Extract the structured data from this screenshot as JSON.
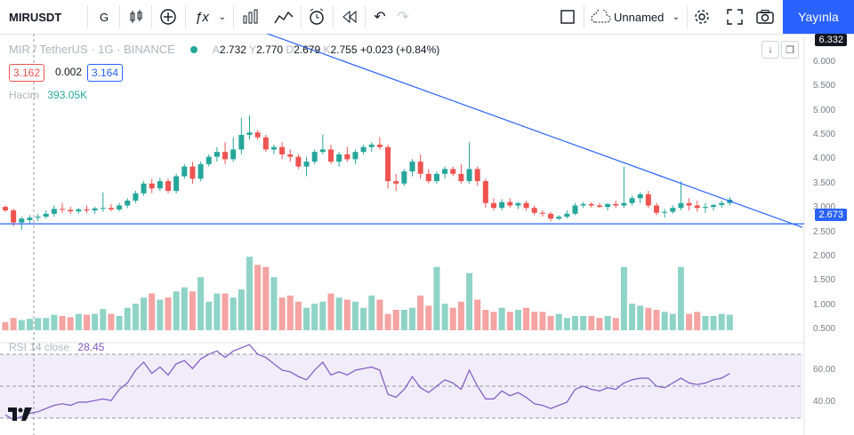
{
  "toolbar": {
    "symbol": "MIRUSDT",
    "interval": "G",
    "layout_name": "Unnamed",
    "publish_label": "Yayınla"
  },
  "legend": {
    "title": "MIR / TetherUS · 1G · BINANCE",
    "o_label": "A",
    "o_value": "2.732",
    "h_label": "Y",
    "h_value": "2.770",
    "l_label": "D",
    "l_value": "2.679",
    "c_label": "K",
    "c_value": "2.755",
    "change": "+0.023 (+0.84%)",
    "bid": "3.162",
    "spread": "0.002",
    "ask": "3.164",
    "volume_label": "Hacim",
    "volume_value": "393.05K",
    "rsi_label": "RSI 14 close",
    "rsi_value": "28.45"
  },
  "price_axis": {
    "top_label": "6.332",
    "ticks": [
      "6.000",
      "5.500",
      "5.000",
      "4.500",
      "4.000",
      "3.500",
      "3.000",
      "2.500",
      "2.000",
      "1.500",
      "1.000",
      "0.500"
    ],
    "horizontal_line_label": "2.673"
  },
  "rsi_axis": {
    "ticks": [
      "60.00",
      "40.00"
    ]
  },
  "colors": {
    "up": "#26a69a",
    "down": "#ef5350",
    "vol_up": "#8fd3c7",
    "vol_down": "#f5a3a3",
    "line": "#2962ff",
    "rsi": "#7e57c2",
    "rsi_band": "#f0ecfa",
    "accent": "#2962ff"
  },
  "chart_data": {
    "type": "candlestick",
    "title": "MIR / TetherUS · 1G · BINANCE",
    "ylim": [
      0,
      6.5
    ],
    "candles": [
      [
        3.02,
        3.05,
        2.92,
        2.95
      ],
      [
        2.95,
        2.98,
        2.62,
        2.7
      ],
      [
        2.7,
        2.82,
        2.55,
        2.78
      ],
      [
        2.75,
        2.85,
        2.68,
        2.8
      ],
      [
        2.8,
        2.88,
        2.73,
        2.82
      ],
      [
        2.82,
        2.95,
        2.78,
        2.88
      ],
      [
        2.88,
        3.05,
        2.82,
        2.98
      ],
      [
        2.98,
        3.1,
        2.9,
        2.96
      ],
      [
        2.96,
        3.02,
        2.88,
        2.93
      ],
      [
        2.93,
        3.0,
        2.88,
        2.97
      ],
      [
        2.97,
        3.05,
        2.9,
        2.95
      ],
      [
        2.95,
        3.02,
        2.88,
        2.99
      ],
      [
        2.99,
        3.32,
        2.92,
        3.0
      ],
      [
        3.0,
        3.08,
        2.93,
        2.97
      ],
      [
        2.97,
        3.1,
        2.93,
        3.05
      ],
      [
        3.05,
        3.2,
        3.0,
        3.15
      ],
      [
        3.15,
        3.35,
        3.1,
        3.3
      ],
      [
        3.3,
        3.55,
        3.25,
        3.5
      ],
      [
        3.5,
        3.6,
        3.3,
        3.4
      ],
      [
        3.4,
        3.62,
        3.35,
        3.55
      ],
      [
        3.55,
        3.6,
        3.3,
        3.35
      ],
      [
        3.35,
        3.7,
        3.3,
        3.65
      ],
      [
        3.65,
        3.9,
        3.6,
        3.85
      ],
      [
        3.85,
        3.95,
        3.5,
        3.6
      ],
      [
        3.6,
        3.95,
        3.55,
        3.9
      ],
      [
        3.9,
        4.1,
        3.85,
        4.05
      ],
      [
        4.05,
        4.25,
        3.95,
        4.15
      ],
      [
        4.15,
        4.35,
        3.9,
        4.0
      ],
      [
        4.0,
        4.45,
        3.95,
        4.2
      ],
      [
        4.2,
        4.85,
        4.1,
        4.5
      ],
      [
        4.5,
        4.9,
        4.4,
        4.55
      ],
      [
        4.55,
        4.6,
        4.4,
        4.45
      ],
      [
        4.45,
        4.5,
        4.15,
        4.2
      ],
      [
        4.2,
        4.3,
        4.1,
        4.25
      ],
      [
        4.25,
        4.35,
        4.0,
        4.1
      ],
      [
        4.1,
        4.2,
        3.95,
        4.05
      ],
      [
        4.05,
        4.1,
        3.8,
        3.85
      ],
      [
        3.85,
        4.05,
        3.65,
        3.95
      ],
      [
        3.95,
        4.2,
        3.9,
        4.15
      ],
      [
        4.15,
        4.5,
        4.1,
        4.2
      ],
      [
        4.2,
        4.3,
        3.9,
        3.95
      ],
      [
        3.95,
        4.15,
        3.85,
        4.1
      ],
      [
        4.1,
        4.25,
        3.95,
        4.0
      ],
      [
        4.0,
        4.2,
        3.9,
        4.15
      ],
      [
        4.15,
        4.3,
        4.1,
        4.25
      ],
      [
        4.25,
        4.35,
        4.15,
        4.3
      ],
      [
        4.3,
        4.45,
        4.2,
        4.25
      ],
      [
        4.25,
        4.3,
        3.4,
        3.55
      ],
      [
        3.55,
        3.7,
        3.35,
        3.5
      ],
      [
        3.5,
        3.8,
        3.45,
        3.75
      ],
      [
        3.75,
        4.0,
        3.65,
        3.95
      ],
      [
        3.95,
        4.1,
        3.6,
        3.7
      ],
      [
        3.7,
        3.8,
        3.5,
        3.55
      ],
      [
        3.55,
        3.75,
        3.5,
        3.7
      ],
      [
        3.7,
        3.85,
        3.6,
        3.8
      ],
      [
        3.8,
        3.85,
        3.65,
        3.7
      ],
      [
        3.7,
        3.9,
        3.5,
        3.55
      ],
      [
        3.55,
        4.35,
        3.5,
        3.8
      ],
      [
        3.8,
        3.85,
        3.45,
        3.55
      ],
      [
        3.55,
        3.6,
        3.0,
        3.1
      ],
      [
        3.1,
        3.2,
        2.95,
        3.0
      ],
      [
        3.0,
        3.18,
        2.95,
        3.12
      ],
      [
        3.12,
        3.2,
        3.0,
        3.05
      ],
      [
        3.05,
        3.12,
        2.98,
        3.1
      ],
      [
        3.1,
        3.15,
        2.95,
        3.0
      ],
      [
        3.0,
        3.05,
        2.85,
        2.9
      ],
      [
        2.9,
        2.95,
        2.82,
        2.88
      ],
      [
        2.88,
        2.92,
        2.73,
        2.78
      ],
      [
        2.78,
        2.85,
        2.75,
        2.82
      ],
      [
        2.82,
        2.95,
        2.78,
        2.88
      ],
      [
        2.88,
        3.1,
        2.85,
        3.05
      ],
      [
        3.05,
        3.12,
        3.0,
        3.08
      ],
      [
        3.08,
        3.12,
        3.0,
        3.05
      ],
      [
        3.05,
        3.1,
        3.0,
        3.02
      ],
      [
        3.02,
        3.1,
        2.95,
        3.08
      ],
      [
        3.08,
        3.15,
        3.0,
        3.05
      ],
      [
        3.05,
        3.85,
        3.0,
        3.1
      ],
      [
        3.1,
        3.25,
        3.05,
        3.2
      ],
      [
        3.2,
        3.32,
        3.1,
        3.28
      ],
      [
        3.28,
        3.35,
        3.0,
        3.05
      ],
      [
        3.05,
        3.1,
        2.85,
        2.9
      ],
      [
        2.9,
        2.98,
        2.8,
        2.92
      ],
      [
        2.92,
        3.05,
        2.88,
        3.0
      ],
      [
        3.0,
        3.55,
        2.95,
        3.1
      ],
      [
        3.1,
        3.2,
        2.95,
        3.05
      ],
      [
        3.05,
        3.15,
        2.92,
        3.0
      ],
      [
        3.0,
        3.1,
        2.9,
        3.02
      ],
      [
        3.02,
        3.08,
        2.95,
        3.06
      ],
      [
        3.06,
        3.15,
        3.0,
        3.1
      ],
      [
        3.1,
        3.22,
        3.05,
        3.17
      ]
    ],
    "volume": [
      0.2,
      0.3,
      0.25,
      0.28,
      0.3,
      0.3,
      0.38,
      0.35,
      0.32,
      0.4,
      0.38,
      0.4,
      0.52,
      0.4,
      0.35,
      0.55,
      0.65,
      0.8,
      0.9,
      0.75,
      0.8,
      0.95,
      1.05,
      0.95,
      1.3,
      0.7,
      0.9,
      0.9,
      0.8,
      1.0,
      1.8,
      1.6,
      1.55,
      1.3,
      0.8,
      0.85,
      0.7,
      0.55,
      0.65,
      0.7,
      0.9,
      0.8,
      0.75,
      0.7,
      0.55,
      0.85,
      0.75,
      0.4,
      0.5,
      0.5,
      0.55,
      0.85,
      0.6,
      1.55,
      0.65,
      0.55,
      0.7,
      1.4,
      0.75,
      0.5,
      0.45,
      0.55,
      0.45,
      0.5,
      0.55,
      0.45,
      0.45,
      0.35,
      0.4,
      0.3,
      0.35,
      0.35,
      0.35,
      0.3,
      0.35,
      0.3,
      1.55,
      0.65,
      0.6,
      0.55,
      0.5,
      0.45,
      0.4,
      1.55,
      0.4,
      0.45,
      0.35,
      0.35,
      0.4,
      0.38
    ],
    "rsi": [
      32,
      29,
      31,
      33,
      34,
      36,
      38,
      39,
      38,
      40,
      40,
      41,
      42,
      41,
      48,
      52,
      60,
      65,
      58,
      62,
      57,
      64,
      66,
      61,
      67,
      70,
      72,
      68,
      72,
      74,
      76,
      70,
      68,
      64,
      60,
      59,
      56,
      54,
      60,
      65,
      57,
      59,
      57,
      60,
      61,
      62,
      60,
      45,
      43,
      48,
      56,
      49,
      46,
      50,
      54,
      52,
      48,
      60,
      50,
      42,
      42,
      47,
      44,
      46,
      43,
      39,
      38,
      36,
      38,
      40,
      48,
      50,
      48,
      47,
      49,
      48,
      52,
      54,
      55,
      55,
      50,
      49,
      52,
      55,
      52,
      51,
      52,
      54,
      55,
      58
    ],
    "horizontal_line": 2.673,
    "trendline": [
      [
        0.33,
        6.6
      ],
      [
        1.0,
        2.6
      ]
    ],
    "rsi_levels": [
      70,
      50,
      30
    ]
  }
}
